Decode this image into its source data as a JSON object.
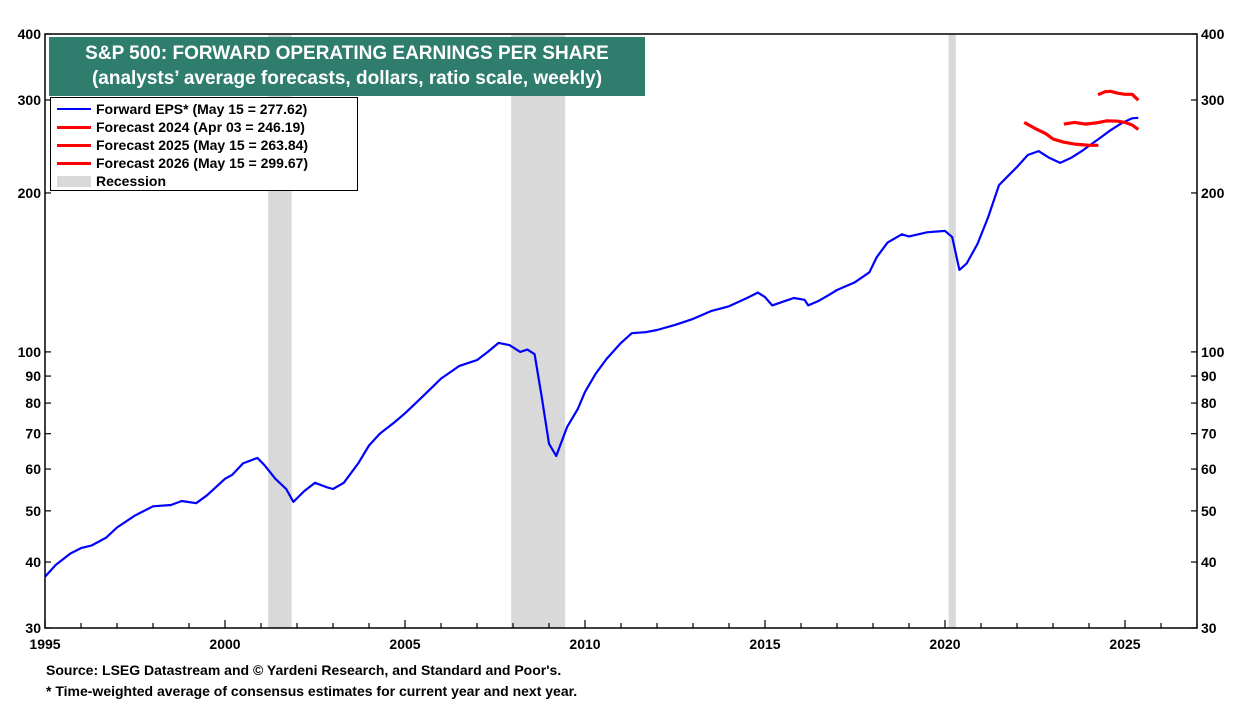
{
  "chart_data": {
    "type": "line",
    "title": "S&P 500: FORWARD OPERATING EARNINGS PER SHARE",
    "subtitle": "(analysts’ average forecasts, dollars, ratio scale, weekly)",
    "y_scale": "log",
    "ylim": [
      30,
      400
    ],
    "xlim": [
      1995,
      2027
    ],
    "x_ticks": [
      "1995",
      "2000",
      "2005",
      "2010",
      "2015",
      "2020",
      "2025"
    ],
    "y_ticks": [
      "30",
      "40",
      "50",
      "60",
      "70",
      "80",
      "90",
      "100",
      "200",
      "300",
      "400"
    ],
    "grid": false,
    "legend_position": "top-left",
    "recessions": [
      {
        "start": 2001.2,
        "end": 2001.85
      },
      {
        "start": 2007.95,
        "end": 2009.45
      },
      {
        "start": 2020.1,
        "end": 2020.3
      }
    ],
    "series": [
      {
        "name": "Forward EPS* (May 15 = 277.62)",
        "color": "#0000ff",
        "points": [
          [
            1995.0,
            37.5
          ],
          [
            1995.3,
            39.5
          ],
          [
            1995.7,
            41.5
          ],
          [
            1996.0,
            42.5
          ],
          [
            1996.3,
            43.0
          ],
          [
            1996.7,
            44.5
          ],
          [
            1997.0,
            46.5
          ],
          [
            1997.5,
            49.0
          ],
          [
            1998.0,
            51.0
          ],
          [
            1998.5,
            51.3
          ],
          [
            1998.8,
            52.2
          ],
          [
            1999.2,
            51.7
          ],
          [
            1999.5,
            53.5
          ],
          [
            2000.0,
            57.5
          ],
          [
            2000.2,
            58.5
          ],
          [
            2000.5,
            61.5
          ],
          [
            2000.9,
            63.0
          ],
          [
            2001.1,
            61.0
          ],
          [
            2001.4,
            57.5
          ],
          [
            2001.7,
            55.0
          ],
          [
            2001.9,
            52.0
          ],
          [
            2002.2,
            54.5
          ],
          [
            2002.5,
            56.5
          ],
          [
            2002.8,
            55.5
          ],
          [
            2003.0,
            55.0
          ],
          [
            2003.3,
            56.5
          ],
          [
            2003.7,
            61.5
          ],
          [
            2004.0,
            66.5
          ],
          [
            2004.3,
            70.0
          ],
          [
            2004.7,
            73.5
          ],
          [
            2005.0,
            76.5
          ],
          [
            2005.3,
            80.0
          ],
          [
            2005.7,
            85.0
          ],
          [
            2006.0,
            89.0
          ],
          [
            2006.5,
            94.0
          ],
          [
            2007.0,
            96.5
          ],
          [
            2007.3,
            100.0
          ],
          [
            2007.6,
            104.0
          ],
          [
            2007.9,
            103.0
          ],
          [
            2008.2,
            100.0
          ],
          [
            2008.4,
            101.0
          ],
          [
            2008.6,
            99.0
          ],
          [
            2008.8,
            82.0
          ],
          [
            2009.0,
            67.0
          ],
          [
            2009.2,
            63.5
          ],
          [
            2009.5,
            72.0
          ],
          [
            2009.8,
            78.0
          ],
          [
            2010.0,
            84.0
          ],
          [
            2010.3,
            91.0
          ],
          [
            2010.6,
            97.0
          ],
          [
            2011.0,
            104.0
          ],
          [
            2011.3,
            108.5
          ],
          [
            2011.7,
            109.0
          ],
          [
            2012.0,
            110.0
          ],
          [
            2012.5,
            112.5
          ],
          [
            2013.0,
            115.5
          ],
          [
            2013.5,
            119.5
          ],
          [
            2014.0,
            122.0
          ],
          [
            2014.5,
            126.5
          ],
          [
            2014.8,
            129.5
          ],
          [
            2015.0,
            127.0
          ],
          [
            2015.2,
            122.5
          ],
          [
            2015.5,
            124.5
          ],
          [
            2015.8,
            126.5
          ],
          [
            2016.1,
            125.5
          ],
          [
            2016.2,
            122.5
          ],
          [
            2016.5,
            125.0
          ],
          [
            2016.8,
            128.5
          ],
          [
            2017.0,
            131.0
          ],
          [
            2017.5,
            135.5
          ],
          [
            2017.9,
            141.5
          ],
          [
            2018.1,
            151.0
          ],
          [
            2018.4,
            161.0
          ],
          [
            2018.8,
            167.0
          ],
          [
            2019.0,
            165.5
          ],
          [
            2019.5,
            168.5
          ],
          [
            2020.0,
            169.5
          ],
          [
            2020.2,
            165.0
          ],
          [
            2020.4,
            143.0
          ],
          [
            2020.6,
            147.0
          ],
          [
            2020.9,
            160.0
          ],
          [
            2021.2,
            180.0
          ],
          [
            2021.5,
            207.0
          ],
          [
            2021.8,
            217.0
          ],
          [
            2022.0,
            224.0
          ],
          [
            2022.3,
            236.0
          ],
          [
            2022.6,
            240.0
          ],
          [
            2022.9,
            233.0
          ],
          [
            2023.2,
            228.0
          ],
          [
            2023.5,
            233.0
          ],
          [
            2023.8,
            240.0
          ],
          [
            2024.0,
            245.5
          ],
          [
            2024.3,
            254.0
          ],
          [
            2024.6,
            263.0
          ],
          [
            2024.9,
            271.0
          ],
          [
            2025.2,
            277.0
          ],
          [
            2025.37,
            277.62
          ]
        ]
      },
      {
        "name": "Forecast 2024 (Apr 03 = 246.19)",
        "color": "#ff0000",
        "points": [
          [
            2022.2,
            272.0
          ],
          [
            2022.5,
            265.0
          ],
          [
            2022.8,
            259.0
          ],
          [
            2023.0,
            253.0
          ],
          [
            2023.3,
            249.5
          ],
          [
            2023.6,
            247.5
          ],
          [
            2023.9,
            246.5
          ],
          [
            2024.0,
            246.2
          ],
          [
            2024.26,
            246.19
          ]
        ]
      },
      {
        "name": "Forecast 2025 (May 15 = 263.84)",
        "color": "#ff0000",
        "points": [
          [
            2023.3,
            270.0
          ],
          [
            2023.6,
            272.0
          ],
          [
            2023.9,
            270.0
          ],
          [
            2024.2,
            271.5
          ],
          [
            2024.5,
            274.0
          ],
          [
            2024.8,
            273.5
          ],
          [
            2025.0,
            272.0
          ],
          [
            2025.2,
            269.0
          ],
          [
            2025.37,
            263.84
          ]
        ]
      },
      {
        "name": "Forecast 2026 (May 15 = 299.67)",
        "color": "#ff0000",
        "points": [
          [
            2024.25,
            307.0
          ],
          [
            2024.45,
            311.0
          ],
          [
            2024.6,
            311.5
          ],
          [
            2024.8,
            309.0
          ],
          [
            2025.0,
            307.5
          ],
          [
            2025.2,
            307.5
          ],
          [
            2025.37,
            299.67
          ]
        ]
      }
    ],
    "recession_legend_label": "Recession",
    "source_note": "Source: LSEG Datastream and © Yardeni Research, and Standard and Poor's.",
    "footnote": "* Time-weighted average of consensus estimates for current year and next year."
  },
  "colors": {
    "title_background": "#2f7d6d",
    "recession_shade": "#d9d9d9",
    "forward_eps": "#0000ff",
    "forecasts": "#ff0000"
  }
}
